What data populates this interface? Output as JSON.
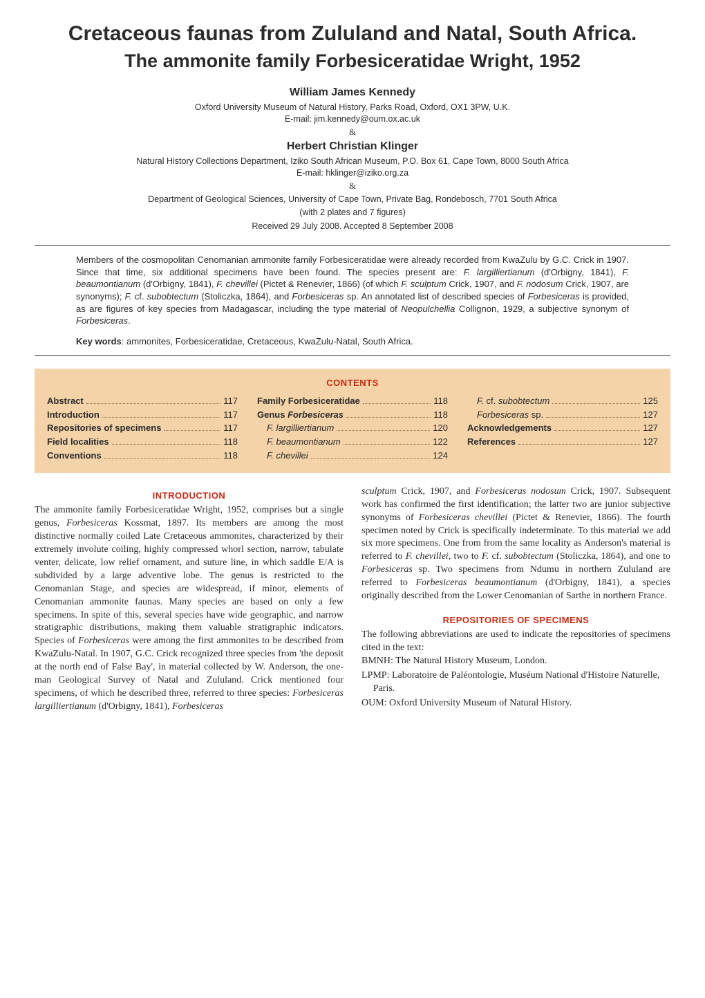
{
  "title": {
    "line1": "Cretaceous faunas from Zululand and Natal, South Africa.",
    "line2": "The ammonite family Forbesiceratidae Wright, 1952"
  },
  "authors": [
    {
      "name": "William James Kennedy",
      "affil": "Oxford University Museum of Natural History, Parks Road, Oxford, OX1 3PW, U.K.",
      "email": "E-mail: jim.kennedy@oum.ox.ac.uk"
    },
    {
      "name": "Herbert Christian Klinger",
      "affil1": "Natural History Collections Department, Iziko South African Museum, P.O. Box 61, Cape Town, 8000 South Africa",
      "email": "E-mail: hklinger@iziko.org.za",
      "affil2": "Department of Geological Sciences, University of Cape Town, Private Bag, Rondebosch, 7701 South Africa"
    }
  ],
  "amp": "&",
  "with_note": "(with 2 plates and 7 figures)",
  "received": "Received 29 July 2008. Accepted 8 September 2008",
  "abstract_html": "Members of the cosmopolitan Cenomanian ammonite family Forbesiceratidae were already recorded from KwaZulu by G.C. Crick in 1907. Since that time, six additional specimens have been found. The species present are: <span class='italic'>F. largilliertianum</span> (d'Orbigny, 1841), <span class='italic'>F. beaumontianum</span> (d'Orbigny, 1841), <span class='italic'>F. chevillei</span> (Pictet & Renevier, 1866) (of which <span class='italic'>F. sculptum</span> Crick, 1907, and <span class='italic'>F. nodosum</span> Crick, 1907, are synonyms); <span class='italic'>F.</span> cf. <span class='italic'>subobtectum</span> (Stoliczka, 1864), and <span class='italic'>Forbesiceras</span> sp. An annotated list of described species of <span class='italic'>Forbesiceras</span> is provided, as are figures of key species from Madagascar, including the type material of <span class='italic'>Neopulchellia</span> Collignon, 1929, a subjective synonym of <span class='italic'>Forbesiceras</span>.",
  "keywords_label": "Key words",
  "keywords": ": ammonites, Forbesiceratidae, Cretaceous, KwaZulu-Natal, South Africa.",
  "contents_heading": "CONTENTS",
  "contents": {
    "col1": [
      {
        "label": "Abstract",
        "page": "117",
        "bold": true
      },
      {
        "label": "Introduction",
        "page": "117",
        "bold": true
      },
      {
        "label": "Repositories of specimens",
        "page": "117",
        "bold": true
      },
      {
        "label": "Field localities",
        "page": "118",
        "bold": true
      },
      {
        "label": "Conventions",
        "page": "118",
        "bold": true
      }
    ],
    "col2": [
      {
        "label": "Family Forbesiceratidae",
        "page": "118",
        "bold": true
      },
      {
        "label_html": "Genus <span class='italic'>Forbesiceras</span>",
        "page": "118",
        "bold": true
      },
      {
        "label": "F. largilliertianum",
        "page": "120",
        "ital": true,
        "indent": true
      },
      {
        "label": "F. beaumontianum",
        "page": "122",
        "ital": true,
        "indent": true
      },
      {
        "label": "F. chevillei",
        "page": "124",
        "ital": true,
        "indent": true
      }
    ],
    "col3": [
      {
        "label_html": "<span class='italic'>F.</span> cf. <span class='italic'>subobtectum</span>",
        "page": "125",
        "indent": true
      },
      {
        "label_html": "<span class='italic'>Forbesiceras</span> sp.",
        "page": "127",
        "indent": true
      },
      {
        "label": "Acknowledgements",
        "page": "127",
        "bold": true
      },
      {
        "label": "References",
        "page": "127",
        "bold": true
      }
    ]
  },
  "sections": {
    "introduction_heading": "INTRODUCTION",
    "intro_left_html": "The ammonite family Forbesiceratidae Wright, 1952, comprises but a single genus, <span class='inline-ital'>Forbesiceras</span> Kossmat, 1897. Its members are among the most distinctive normally coiled Late Cretaceous ammonites, characterized by their extremely involute coiling, highly compressed whorl section, narrow, tabulate venter, delicate, low relief ornament, and suture line, in which saddle E/A is subdivided by a large adventive lobe. The genus is restricted to the Cenomanian Stage, and species are widespread, if minor, elements of Cenomanian ammonite faunas. Many species are based on only a few specimens. In spite of this, several species have wide geographic, and narrow stratigraphic distributions, making them valuable stratigraphic indicators. Species of <span class='inline-ital'>Forbesiceras</span> were among the first ammonites to be described from KwaZulu-Natal. In 1907, G.C. Crick recognized three species from 'the deposit at the north end of False Bay', in material collected by W. Anderson, the one-man Geological Survey of Natal and Zululand. Crick mentioned four specimens, of which he described three, referred to three species: <span class='inline-ital'>Forbesiceras largilliertianum</span> (d'Orbigny, 1841), <span class='inline-ital'>Forbesiceras</span>",
    "intro_right_html": "<span class='inline-ital'>sculptum</span> Crick, 1907, and <span class='inline-ital'>Forbesiceras nodosum</span> Crick, 1907. Subsequent work has confirmed the first identification; the latter two are junior subjective synonyms of <span class='inline-ital'>Forbesiceras chevillei</span> (Pictet & Renevier, 1866). The fourth specimen noted by Crick is specifically indeterminate. To this material we add six more specimens. One from from the same locality as Anderson's material is referred to <span class='inline-ital'>F. chevillei</span>, two to <span class='inline-ital'>F.</span> cf. <span class='inline-ital'>subobtectum</span> (Stoliczka, 1864), and one to <span class='inline-ital'>Forbesiceras</span> sp. Two specimens from Ndumu in northern Zululand are referred to <span class='inline-ital'>Forbesiceras beaumontianum</span> (d'Orbigny, 1841), a species originally described from the Lower Cenomanian of Sarthe in northern France.",
    "repos_heading": "REPOSITORIES OF SPECIMENS",
    "repos_intro": "The following abbreviations are used to indicate the repositories of specimens cited in the text:",
    "repos_items": [
      "BMNH: The Natural History Museum, London.",
      "LPMP: Laboratoire de Paléontologie, Muséum National d'Histoire Naturelle, Paris.",
      "OUM: Oxford University Museum of Natural History."
    ]
  },
  "colors": {
    "accent_red": "#c82a13",
    "contents_bg": "#f4d3a9",
    "text": "#2b2b2b",
    "leader": "#8b7355"
  }
}
